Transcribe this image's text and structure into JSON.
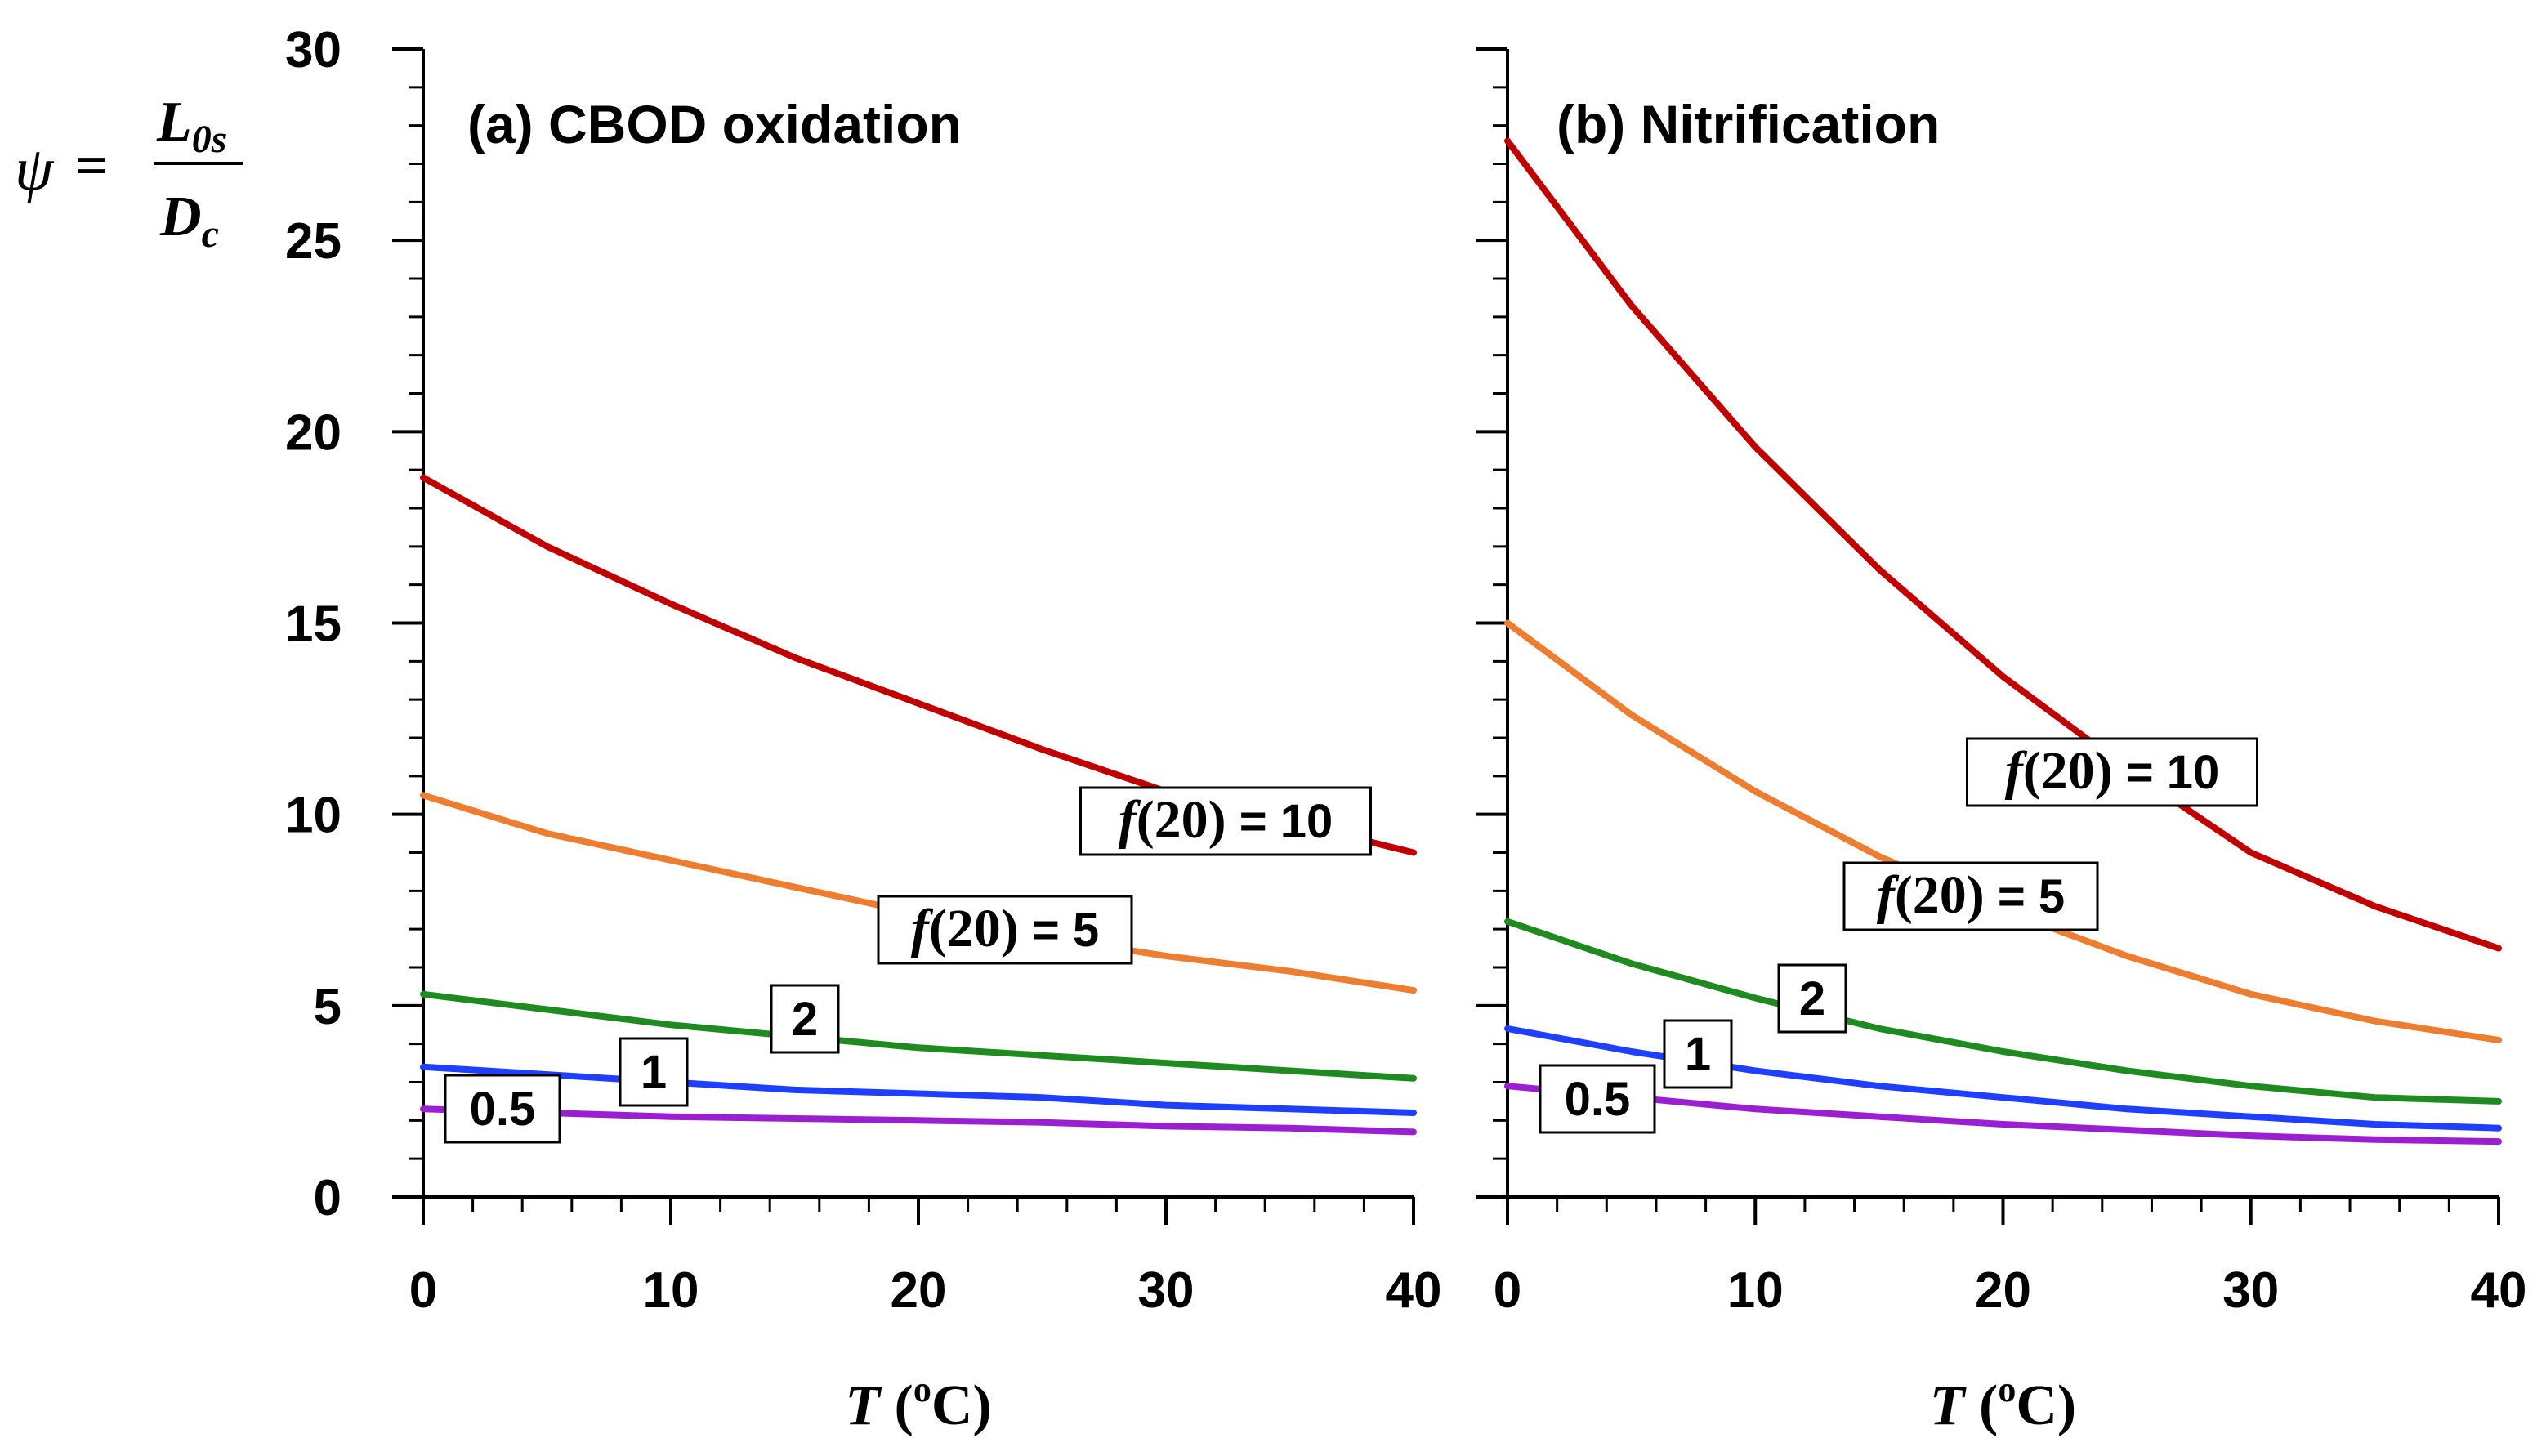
{
  "chart_data": [
    {
      "type": "line",
      "panel": "a",
      "title": "(a) CBOD oxidation",
      "xlabel": "T (oC)",
      "ylabel": "ψ = L0s / Dc",
      "xlim": [
        0,
        40
      ],
      "ylim": [
        0,
        30
      ],
      "x_ticks": [
        0,
        10,
        20,
        30,
        40
      ],
      "y_ticks": [
        0,
        5,
        10,
        15,
        20,
        25,
        30
      ],
      "x": [
        0,
        5,
        10,
        15,
        20,
        25,
        30,
        35,
        40
      ],
      "series": [
        {
          "name": "f(20) = 10",
          "label": "f(20) = 10",
          "color": "#C00000",
          "values": [
            18.8,
            17.0,
            15.5,
            14.1,
            12.9,
            11.7,
            10.6,
            9.8,
            9.0
          ]
        },
        {
          "name": "f(20) = 5",
          "label": "f(20) = 5",
          "color": "#ED7D31",
          "values": [
            10.5,
            9.5,
            8.8,
            8.1,
            7.4,
            6.8,
            6.3,
            5.9,
            5.4
          ]
        },
        {
          "name": "f(20) = 2",
          "label": "2",
          "color": "#1F8A1F",
          "values": [
            5.3,
            4.9,
            4.5,
            4.2,
            3.9,
            3.7,
            3.5,
            3.3,
            3.1
          ]
        },
        {
          "name": "f(20) = 1",
          "label": "1",
          "color": "#1F3FFF",
          "values": [
            3.4,
            3.2,
            3.0,
            2.8,
            2.7,
            2.6,
            2.4,
            2.3,
            2.2
          ]
        },
        {
          "name": "f(20) = 0.5",
          "label": "0.5",
          "color": "#9A1FD0",
          "values": [
            2.3,
            2.2,
            2.1,
            2.05,
            2.0,
            1.95,
            1.85,
            1.8,
            1.7
          ]
        }
      ]
    },
    {
      "type": "line",
      "panel": "b",
      "title": "(b) Nitrification",
      "xlabel": "T (oC)",
      "xlim": [
        0,
        40
      ],
      "ylim": [
        0,
        30
      ],
      "x_ticks": [
        0,
        10,
        20,
        30,
        40
      ],
      "x": [
        0,
        5,
        10,
        15,
        20,
        25,
        30,
        35,
        40
      ],
      "series": [
        {
          "name": "f(20) = 10",
          "label": "f(20) = 10",
          "color": "#C00000",
          "values": [
            27.6,
            23.3,
            19.6,
            16.4,
            13.6,
            11.2,
            9.0,
            7.6,
            6.5
          ]
        },
        {
          "name": "f(20) = 5",
          "label": "f(20) = 5",
          "color": "#ED7D31",
          "values": [
            15.0,
            12.6,
            10.6,
            8.9,
            7.5,
            6.3,
            5.3,
            4.6,
            4.1
          ]
        },
        {
          "name": "f(20) = 2",
          "label": "2",
          "color": "#1F8A1F",
          "values": [
            7.2,
            6.1,
            5.2,
            4.4,
            3.8,
            3.3,
            2.9,
            2.6,
            2.5
          ]
        },
        {
          "name": "f(20) = 1",
          "label": "1",
          "color": "#1F3FFF",
          "values": [
            4.4,
            3.8,
            3.3,
            2.9,
            2.6,
            2.3,
            2.1,
            1.9,
            1.8
          ]
        },
        {
          "name": "f(20) = 0.5",
          "label": "0.5",
          "color": "#9A1FD0",
          "values": [
            2.9,
            2.6,
            2.3,
            2.1,
            1.9,
            1.75,
            1.6,
            1.5,
            1.45
          ]
        }
      ]
    }
  ],
  "labels": {
    "ylabel": {
      "psi": "ψ",
      "equals": "=",
      "numerator_main": "L",
      "numerator_sub": "0s",
      "denominator_main": "D",
      "denominator_sub": "c"
    },
    "xlabel": {
      "symbol": "T",
      "open_paren": " (",
      "degree_sup": "o",
      "unit": "C)"
    },
    "f_prefix": "f",
    "f_suffix": "(20)"
  }
}
